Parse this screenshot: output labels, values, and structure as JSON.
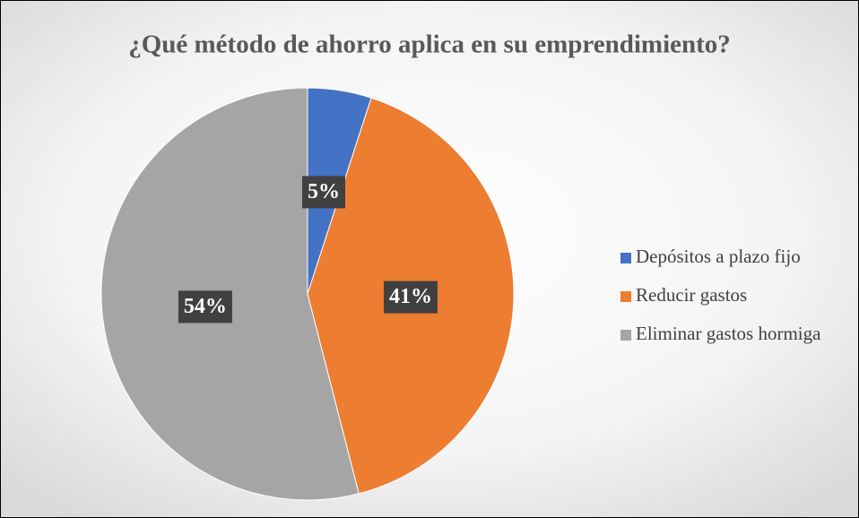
{
  "chart_data": {
    "type": "pie",
    "title": "¿Qué método de ahorro aplica en su emprendimiento?",
    "categories": [
      "Depósitos a plazo fijo",
      "Reducir gastos",
      "Eliminar gastos hormiga"
    ],
    "values": [
      5,
      41,
      54
    ],
    "value_labels": [
      "5%",
      "41%",
      "54%"
    ],
    "colors": [
      "#4472c4",
      "#ed7d31",
      "#a5a5a5"
    ],
    "legend": "right"
  }
}
